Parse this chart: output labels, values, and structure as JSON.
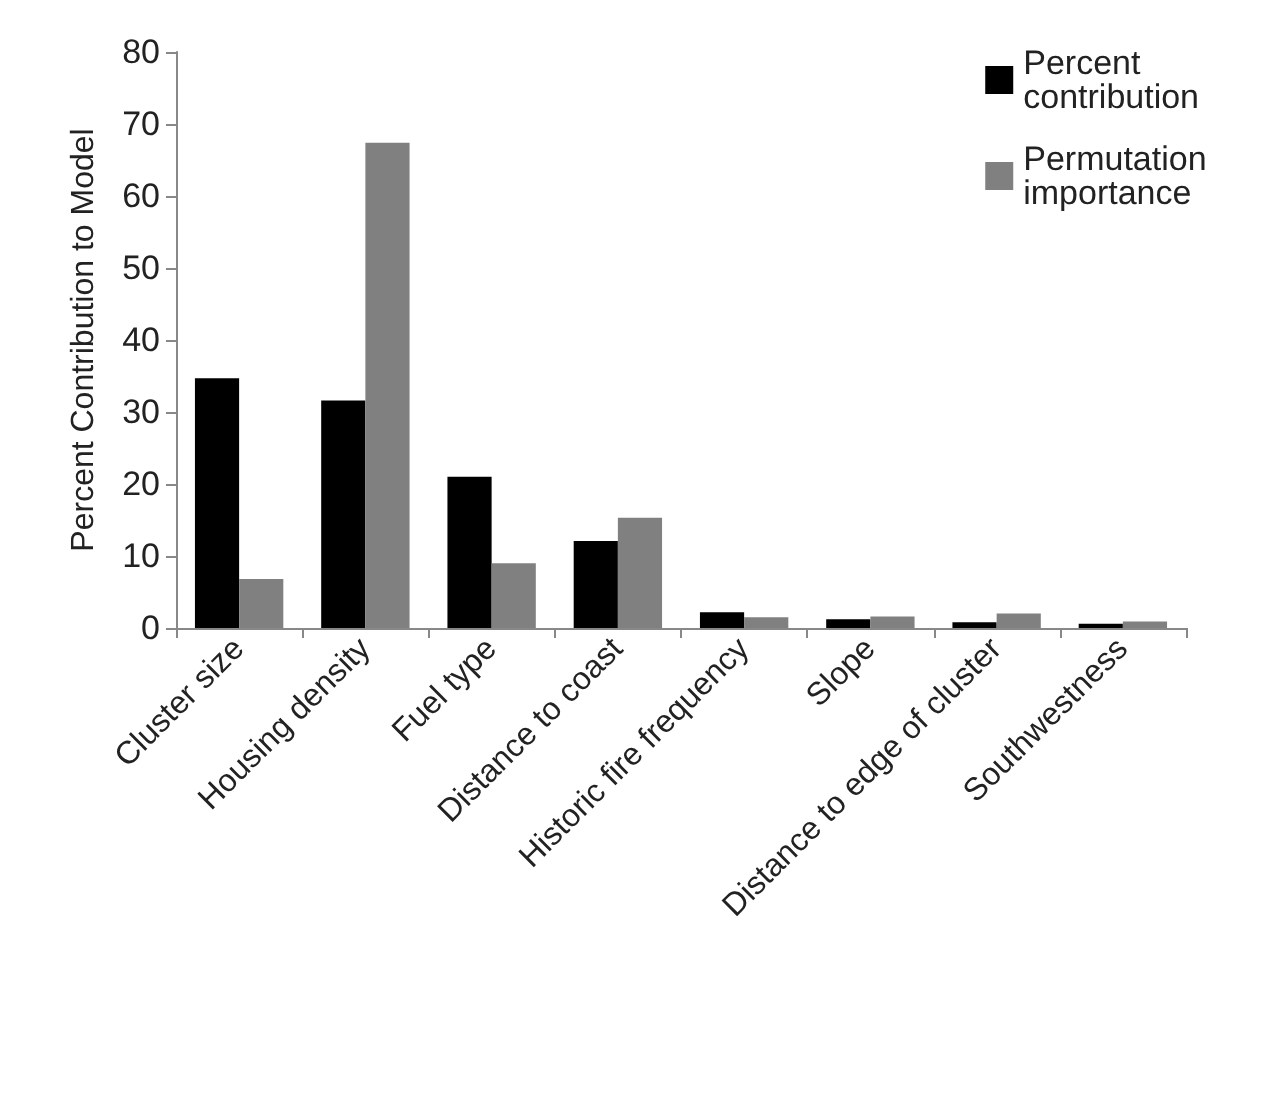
{
  "chart_data": {
    "type": "bar",
    "ylabel": "Percent Contribution to Model",
    "categories": [
      "Cluster size",
      "Housing density",
      "Fuel type",
      "Distance to coast",
      "Historic fire frequency",
      "Slope",
      "Distance to edge of cluster",
      "Southwestness"
    ],
    "series": [
      {
        "name": "Percent contribution",
        "color": "#000000",
        "values": [
          34.7,
          31.6,
          21,
          12.1,
          2.2,
          1.2,
          0.8,
          0.6
        ]
      },
      {
        "name": "Permutation importance",
        "color": "#808080",
        "values": [
          6.8,
          67.4,
          9,
          15.3,
          1.5,
          1.6,
          2,
          0.9
        ]
      }
    ],
    "ylim": [
      0,
      80
    ],
    "yticks": [
      0,
      10,
      20,
      30,
      40,
      50,
      60,
      70,
      80
    ],
    "grid": false,
    "legend": "top right"
  }
}
